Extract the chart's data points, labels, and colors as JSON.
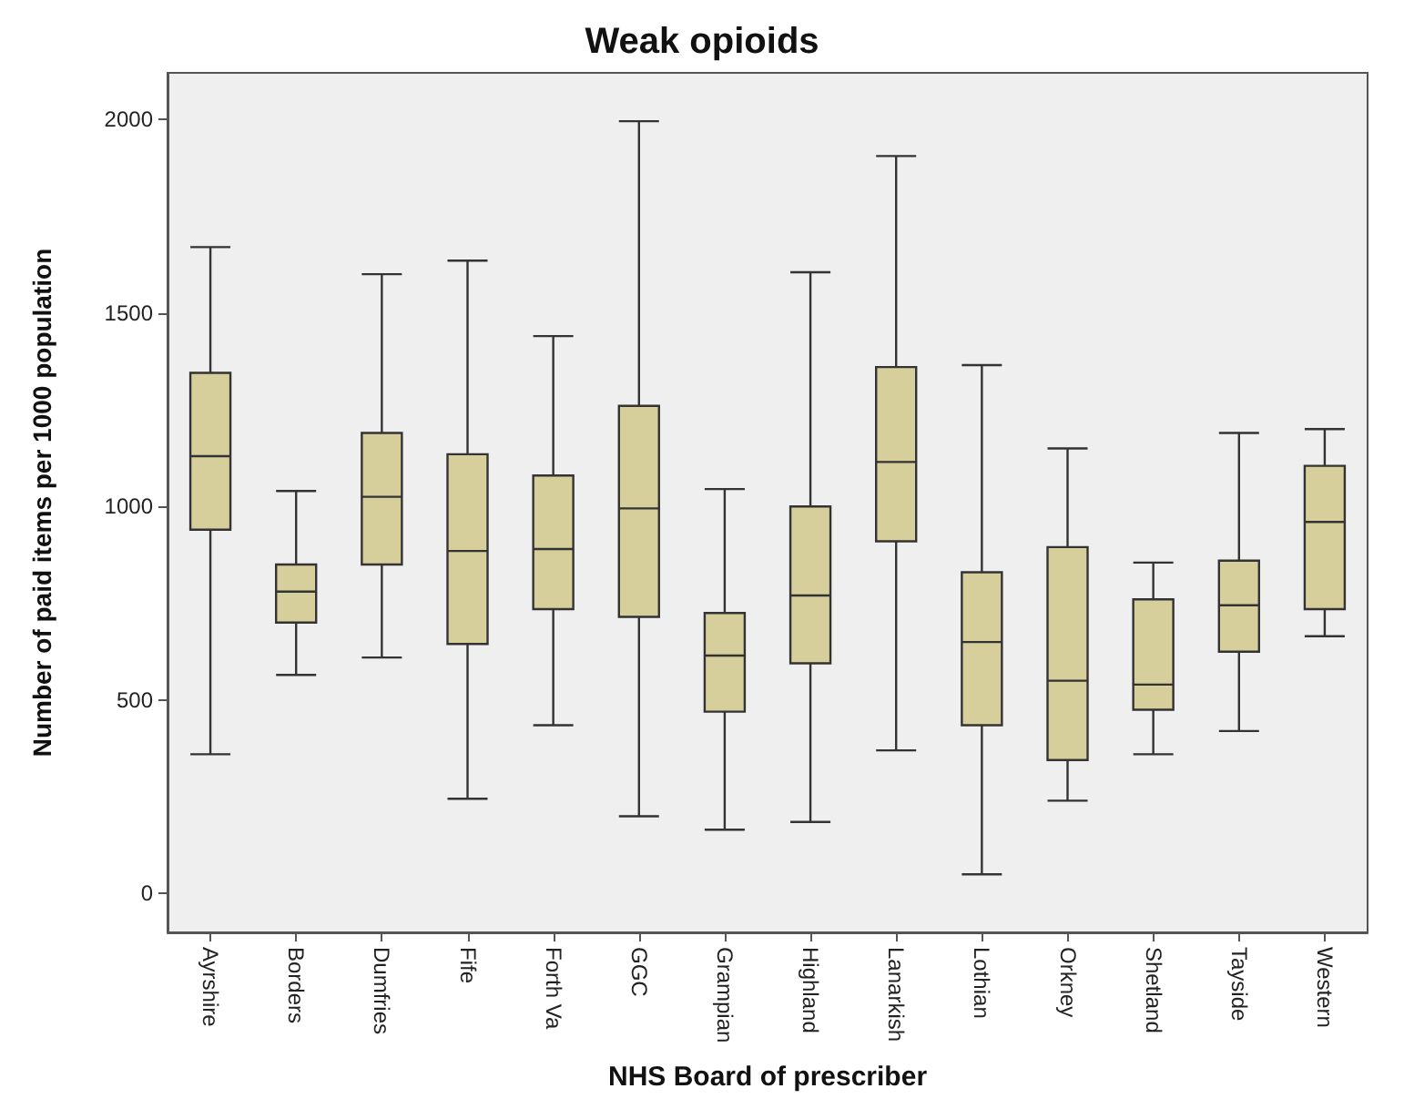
{
  "chart_data": {
    "type": "box",
    "title": "Weak opioids",
    "xlabel": "NHS Board of prescriber",
    "ylabel": "Number of paid items per 1000 population",
    "categories": [
      "Ayrshire",
      "Borders",
      "Dumfries",
      "Fife",
      "Forth Va",
      "GGC",
      "Grampian",
      "Highland",
      "Lanarkish",
      "Lothian",
      "Orkney",
      "Shetland",
      "Tayside",
      "Western"
    ],
    "series": [
      {
        "color": "#d6cf9b",
        "boxes": [
          {
            "low": 360,
            "q1": 940,
            "median": 1130,
            "q3": 1345,
            "high": 1670
          },
          {
            "low": 565,
            "q1": 700,
            "median": 780,
            "q3": 850,
            "high": 1040
          },
          {
            "low": 610,
            "q1": 850,
            "median": 1025,
            "q3": 1190,
            "high": 1600
          },
          {
            "low": 245,
            "q1": 645,
            "median": 885,
            "q3": 1135,
            "high": 1635
          },
          {
            "low": 435,
            "q1": 735,
            "median": 890,
            "q3": 1080,
            "high": 1440
          },
          {
            "low": 200,
            "q1": 715,
            "median": 995,
            "q3": 1260,
            "high": 1995
          },
          {
            "low": 165,
            "q1": 470,
            "median": 615,
            "q3": 725,
            "high": 1045
          },
          {
            "low": 185,
            "q1": 595,
            "median": 770,
            "q3": 1000,
            "high": 1605
          },
          {
            "low": 370,
            "q1": 910,
            "median": 1115,
            "q3": 1360,
            "high": 1905
          },
          {
            "low": 50,
            "q1": 435,
            "median": 650,
            "q3": 830,
            "high": 1365
          },
          {
            "low": 240,
            "q1": 345,
            "median": 550,
            "q3": 895,
            "high": 1150
          },
          {
            "low": 360,
            "q1": 475,
            "median": 540,
            "q3": 760,
            "high": 855
          },
          {
            "low": 420,
            "q1": 625,
            "median": 745,
            "q3": 860,
            "high": 1190
          },
          {
            "low": 665,
            "q1": 735,
            "median": 960,
            "q3": 1105,
            "high": 1200
          }
        ]
      }
    ],
    "ylim": [
      -100,
      2120
    ],
    "yticks": [
      0,
      500,
      1000,
      1500,
      2000
    ],
    "grid": false
  }
}
